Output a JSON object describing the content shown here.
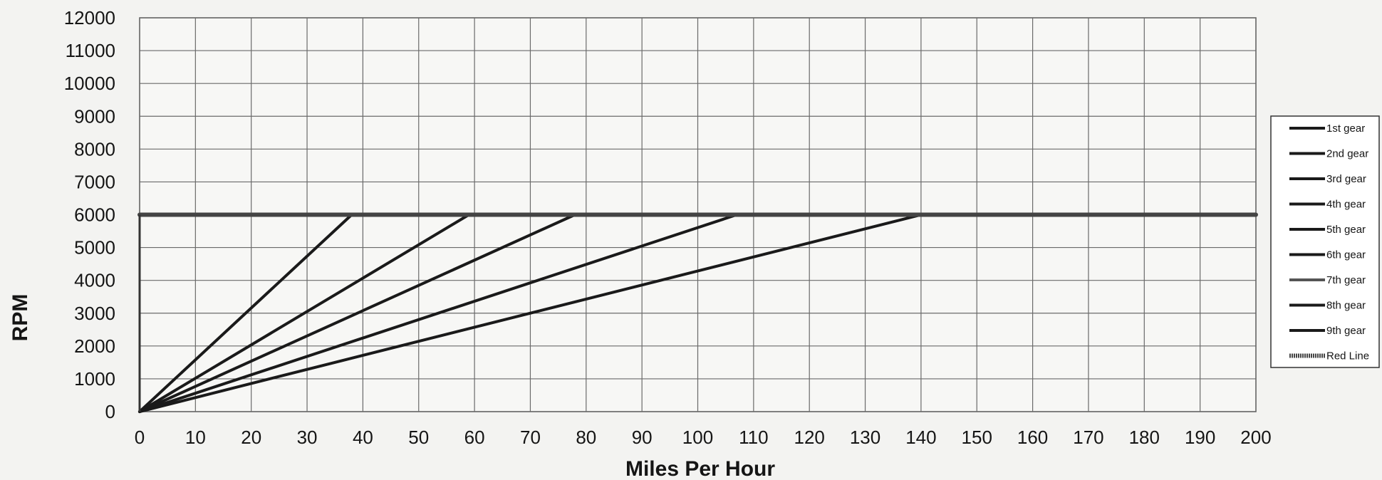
{
  "chart_data": {
    "type": "line",
    "title": "",
    "xlabel": "Miles Per Hour",
    "ylabel": "RPM",
    "xlim": [
      0,
      200
    ],
    "ylim": [
      0,
      12000
    ],
    "x_ticks": [
      0,
      10,
      20,
      30,
      40,
      50,
      60,
      70,
      80,
      90,
      100,
      110,
      120,
      130,
      140,
      150,
      160,
      170,
      180,
      190,
      200
    ],
    "y_ticks": [
      0,
      1000,
      2000,
      3000,
      4000,
      5000,
      6000,
      7000,
      8000,
      9000,
      10000,
      11000,
      12000
    ],
    "grid": true,
    "legend_position": "right",
    "series": [
      {
        "name": "1st gear",
        "x": [
          0,
          38
        ],
        "y": [
          0,
          6000
        ],
        "color": "#1a1a1a"
      },
      {
        "name": "2nd gear",
        "x": [
          0,
          59
        ],
        "y": [
          0,
          6000
        ],
        "color": "#1a1a1a"
      },
      {
        "name": "3rd gear",
        "x": [
          0,
          78
        ],
        "y": [
          0,
          6000
        ],
        "color": "#1a1a1a"
      },
      {
        "name": "4th gear",
        "x": [
          0,
          107
        ],
        "y": [
          0,
          6000
        ],
        "color": "#1a1a1a"
      },
      {
        "name": "5th gear",
        "x": [
          0,
          140
        ],
        "y": [
          0,
          6000
        ],
        "color": "#1a1a1a"
      },
      {
        "name": "6th gear",
        "x": [],
        "y": [],
        "color": "#1a1a1a"
      },
      {
        "name": "7th gear",
        "x": [],
        "y": [],
        "color": "#555555"
      },
      {
        "name": "8th gear",
        "x": [],
        "y": [],
        "color": "#1a1a1a"
      },
      {
        "name": "9th gear",
        "x": [],
        "y": [],
        "color": "#1a1a1a"
      },
      {
        "name": "Red Line",
        "x": [
          0,
          200
        ],
        "y": [
          6000,
          6000
        ],
        "color": "#444444"
      }
    ]
  }
}
